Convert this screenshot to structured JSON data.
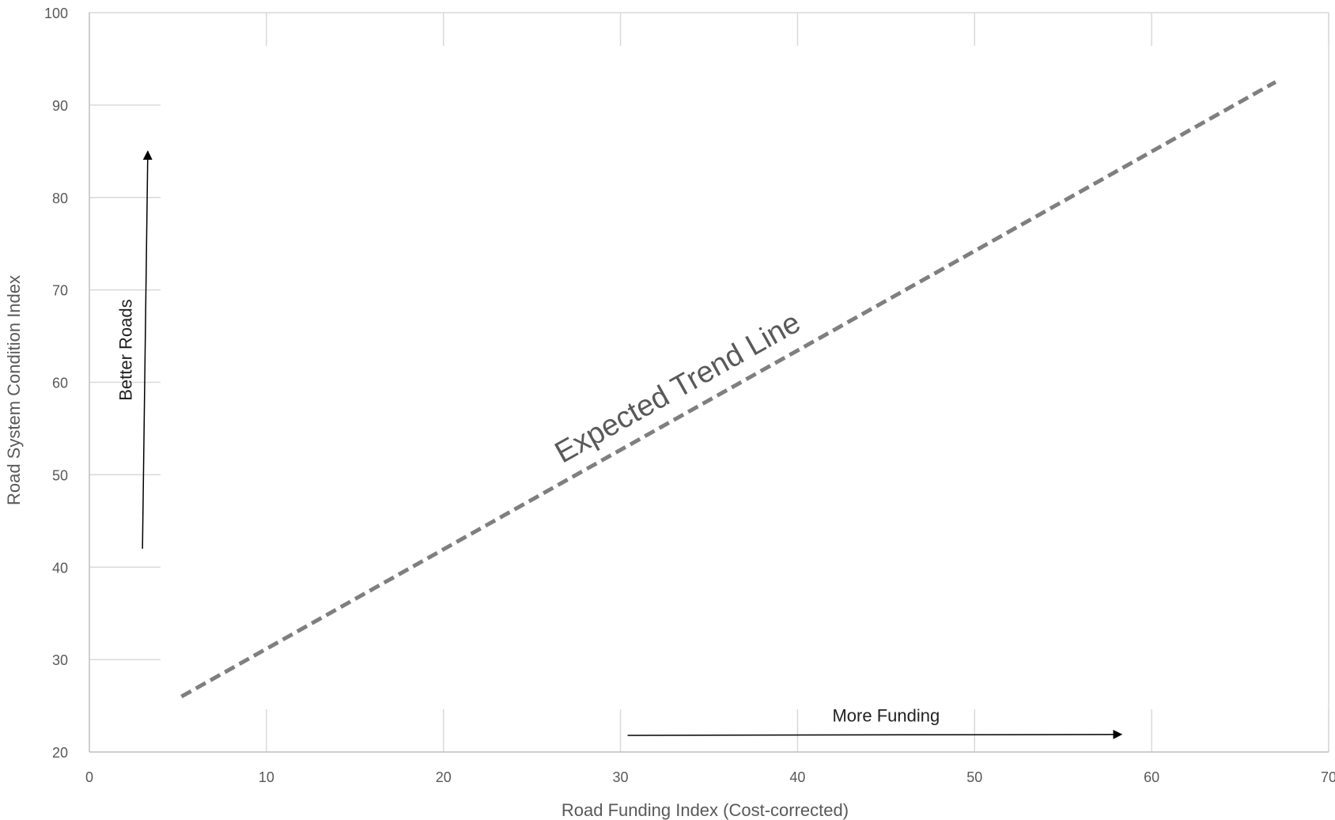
{
  "chart_data": {
    "type": "line",
    "xlabel": "Road Funding Index (Cost-corrected)",
    "ylabel": "Road System Condition Index",
    "xlim": [
      0,
      70
    ],
    "ylim": [
      20,
      100
    ],
    "x_ticks": [
      0,
      10,
      20,
      30,
      40,
      50,
      60,
      70
    ],
    "y_ticks": [
      20,
      30,
      40,
      50,
      60,
      70,
      80,
      90,
      100
    ],
    "grid": true,
    "series": [
      {
        "name": "Expected Trend Line",
        "style": "dashed",
        "color": "#7f7f7f",
        "x": [
          5.2,
          67
        ],
        "y": [
          26.0,
          92.5
        ]
      }
    ],
    "annotations": [
      {
        "id": "better-roads",
        "text": "Better Roads",
        "arrow_from": [
          3.0,
          42
        ],
        "arrow_to": [
          3.3,
          85
        ]
      },
      {
        "id": "more-funding",
        "text": "More Funding",
        "arrow_from": [
          30.4,
          21.8
        ],
        "arrow_to": [
          58.3,
          21.9
        ]
      }
    ]
  }
}
